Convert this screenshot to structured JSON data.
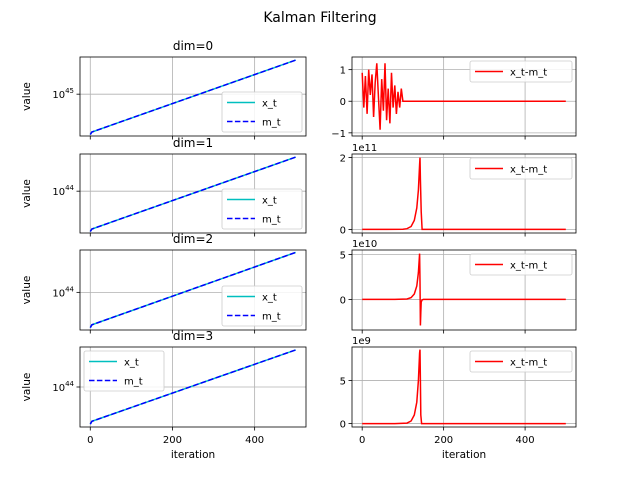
{
  "suptitle": "Kalman Filtering",
  "colors": {
    "x_t": "#00bfbf",
    "m_t": "#0000ff",
    "diff": "#ff0000",
    "grid": "#b0b0b0"
  },
  "chart_data": [
    {
      "type": "line",
      "title": "dim=0",
      "xlabel": "",
      "ylabel": "value",
      "yscale": "log",
      "xlim": [
        -25,
        525
      ],
      "ylim_log10": [
        42.3,
        47.4
      ],
      "xticks": [
        0,
        200,
        400
      ],
      "yticks_log10": [
        45
      ],
      "ytick_labels": [
        "10^45"
      ],
      "legend": "lower right",
      "grid": true,
      "series": [
        {
          "name": "x_t",
          "style": "solid",
          "x": [
            0,
            4,
            500
          ],
          "log10_y": [
            42.4,
            42.56,
            47.2
          ]
        },
        {
          "name": "m_t",
          "style": "dashed",
          "x": [
            0,
            4,
            500
          ],
          "log10_y": [
            42.4,
            42.56,
            47.2
          ]
        }
      ]
    },
    {
      "type": "line",
      "title": "",
      "xlabel": "",
      "ylabel": "",
      "yscale": "linear",
      "xlim": [
        -25,
        525
      ],
      "ylim": [
        -1.1,
        1.4
      ],
      "xticks": [
        0,
        200,
        400
      ],
      "yticks": [
        -1,
        0,
        1
      ],
      "ytick_labels": [
        "−1",
        "0",
        "1"
      ],
      "offset_label": "",
      "legend": "upper right",
      "grid": true,
      "series": [
        {
          "name": "x_t-m_t",
          "style": "solid",
          "x": [
            0,
            4,
            8,
            12,
            16,
            20,
            24,
            28,
            32,
            36,
            40,
            44,
            48,
            52,
            56,
            60,
            64,
            68,
            72,
            76,
            80,
            84,
            88,
            92,
            96,
            100,
            104,
            108,
            500
          ],
          "y": [
            0.9,
            -0.2,
            0.8,
            -0.4,
            1.0,
            0.2,
            0.85,
            -0.5,
            0.6,
            1.2,
            0.1,
            -0.9,
            0.7,
            -0.3,
            1.2,
            -0.6,
            0.4,
            -0.7,
            0.9,
            -0.2,
            0.5,
            -0.4,
            0.3,
            -0.2,
            0.4,
            0,
            0,
            0,
            0
          ]
        }
      ]
    },
    {
      "type": "line",
      "title": "dim=1",
      "xlabel": "",
      "ylabel": "value",
      "yscale": "log",
      "xlim": [
        -25,
        525
      ],
      "ylim_log10": [
        41.3,
        46.4
      ],
      "xticks": [
        0,
        200,
        400
      ],
      "yticks_log10": [
        44
      ],
      "ytick_labels": [
        "10^44"
      ],
      "legend": "lower right",
      "grid": true,
      "series": [
        {
          "name": "x_t",
          "style": "solid",
          "x": [
            0,
            4,
            500
          ],
          "log10_y": [
            41.4,
            41.56,
            46.2
          ]
        },
        {
          "name": "m_t",
          "style": "dashed",
          "x": [
            0,
            4,
            500
          ],
          "log10_y": [
            41.4,
            41.56,
            46.2
          ]
        }
      ]
    },
    {
      "type": "line",
      "title": "",
      "xlabel": "",
      "ylabel": "",
      "yscale": "linear",
      "xlim": [
        -25,
        525
      ],
      "ylim": [
        -0.1,
        2.1
      ],
      "xticks": [
        0,
        200,
        400
      ],
      "yticks": [
        0,
        2
      ],
      "ytick_labels": [
        "0",
        "2"
      ],
      "offset_label": "1e11",
      "legend": "upper right",
      "grid": true,
      "series": [
        {
          "name": "x_t-m_t",
          "style": "solid",
          "x": [
            0,
            60,
            100,
            110,
            120,
            128,
            134,
            138,
            141,
            142,
            143,
            145,
            147,
            500
          ],
          "y": [
            0,
            0,
            0.005,
            0.02,
            0.08,
            0.25,
            0.6,
            1.1,
            1.8,
            2.0,
            1.4,
            0.5,
            0,
            0
          ]
        }
      ]
    },
    {
      "type": "line",
      "title": "dim=2",
      "xlabel": "",
      "ylabel": "value",
      "yscale": "log",
      "xlim": [
        -25,
        525
      ],
      "ylim_log10": [
        42.4,
        45.8
      ],
      "xticks": [
        0,
        200,
        400
      ],
      "yticks_log10": [
        44
      ],
      "ytick_labels": [
        "10^44"
      ],
      "legend": "lower right",
      "grid": true,
      "series": [
        {
          "name": "x_t",
          "style": "solid",
          "x": [
            0,
            4,
            500
          ],
          "log10_y": [
            42.5,
            42.62,
            45.7
          ]
        },
        {
          "name": "m_t",
          "style": "dashed",
          "x": [
            0,
            4,
            500
          ],
          "log10_y": [
            42.5,
            42.62,
            45.7
          ]
        }
      ]
    },
    {
      "type": "line",
      "title": "",
      "xlabel": "",
      "ylabel": "",
      "yscale": "linear",
      "xlim": [
        -25,
        525
      ],
      "ylim": [
        -3.4,
        5.5
      ],
      "xticks": [
        0,
        200,
        400
      ],
      "yticks": [
        0,
        5
      ],
      "ytick_labels": [
        "0",
        "5"
      ],
      "offset_label": "1e10",
      "legend": "upper right",
      "grid": true,
      "series": [
        {
          "name": "x_t-m_t",
          "style": "solid",
          "x": [
            0,
            80,
            110,
            120,
            128,
            134,
            138,
            141,
            142,
            143,
            144,
            145,
            147,
            150,
            500
          ],
          "y": [
            0,
            0,
            0.05,
            0.2,
            0.6,
            1.5,
            3.0,
            5.1,
            2.0,
            -2.9,
            -1.5,
            -0.3,
            -0.05,
            0,
            0
          ]
        }
      ]
    },
    {
      "type": "line",
      "title": "dim=3",
      "xlabel": "iteration",
      "ylabel": "value",
      "yscale": "log",
      "xlim": [
        -25,
        525
      ],
      "ylim_log10": [
        42.6,
        45.4
      ],
      "xticks": [
        0,
        200,
        400
      ],
      "yticks_log10": [
        44
      ],
      "ytick_labels": [
        "10^44"
      ],
      "legend": "upper left",
      "grid": true,
      "series": [
        {
          "name": "x_t",
          "style": "solid",
          "x": [
            0,
            4,
            500
          ],
          "log10_y": [
            42.7,
            42.8,
            45.3
          ]
        },
        {
          "name": "m_t",
          "style": "dashed",
          "x": [
            0,
            4,
            500
          ],
          "log10_y": [
            42.7,
            42.8,
            45.3
          ]
        }
      ]
    },
    {
      "type": "line",
      "title": "",
      "xlabel": "iteration",
      "ylabel": "",
      "yscale": "linear",
      "xlim": [
        -25,
        525
      ],
      "ylim": [
        -0.4,
        8.9
      ],
      "xticks": [
        0,
        200,
        400
      ],
      "yticks": [
        0,
        5
      ],
      "ytick_labels": [
        "0",
        "5"
      ],
      "offset_label": "1e9",
      "legend": "upper right",
      "grid": true,
      "series": [
        {
          "name": "x_t-m_t",
          "style": "solid",
          "x": [
            0,
            80,
            110,
            120,
            128,
            134,
            138,
            141,
            142,
            143,
            144,
            146,
            500
          ],
          "y": [
            0,
            0,
            0.05,
            0.3,
            1.0,
            2.5,
            5.0,
            8.2,
            8.6,
            5.0,
            1.0,
            0,
            0
          ]
        }
      ]
    }
  ]
}
